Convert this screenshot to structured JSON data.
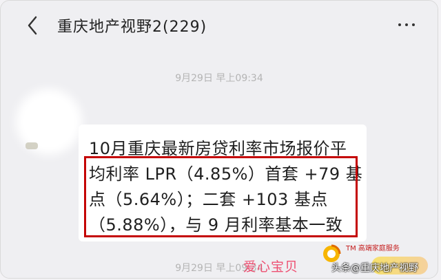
{
  "header": {
    "title": "重庆地产视野2(229)"
  },
  "messages": {
    "timestamp_1": "9月29日 早上09:34",
    "timestamp_2": "9月29日 早上09:34",
    "bubble_lines": [
      "10月重庆最新房贷利率市场报价平",
      "均利率 LPR（4.85%）首套 +79 基",
      "点（5.64%）；二套 +103 基点",
      "（5.88%），与 9 月利率基本一致"
    ]
  },
  "watermarks": {
    "tm_text": "TM 高端家庭服务",
    "sticker_text": "爱心宝贝",
    "toutiao_text": "头条@重庆地产视野"
  },
  "colors": {
    "highlight_border": "#c40000",
    "background": "#efeff2",
    "bubble": "#ffffff"
  },
  "icons": {
    "back": "chevron-left-icon",
    "more": "more-dots-icon"
  }
}
